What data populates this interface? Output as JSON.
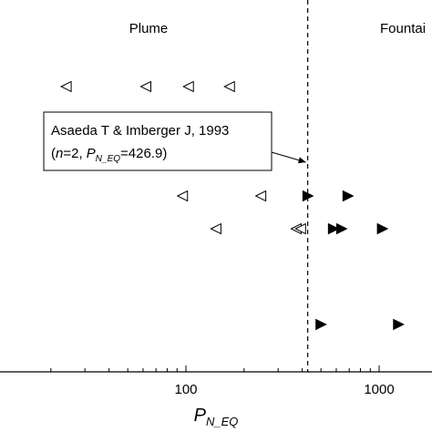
{
  "chart_data": {
    "type": "scatter",
    "x_scale": "log",
    "xlabel_main": "P",
    "xlabel_sub": "N_EQ",
    "xlim": [
      4.5,
      2000
    ],
    "x_ticks": [
      {
        "value": 10,
        "label": ""
      },
      {
        "value": 100,
        "label": "100"
      },
      {
        "value": 1000,
        "label": "1000"
      }
    ],
    "region_labels": [
      {
        "text": "Plume"
      },
      {
        "text": "Fountai"
      }
    ],
    "divider_x": 426.9,
    "series": [
      {
        "marker": "open-left-triangle",
        "points": [
          {
            "x": 24,
            "row": 1
          },
          {
            "x": 62,
            "row": 1
          },
          {
            "x": 103,
            "row": 1
          },
          {
            "x": 168,
            "row": 1
          },
          {
            "x": 96,
            "row": 2
          },
          {
            "x": 244,
            "row": 2
          },
          {
            "x": 143,
            "row": 3
          },
          {
            "x": 372,
            "row": 3
          },
          {
            "x": 392,
            "row": 3
          }
        ]
      },
      {
        "marker": "filled-right-triangle",
        "points": [
          {
            "x": 428,
            "row": 2
          },
          {
            "x": 690,
            "row": 2
          },
          {
            "x": 580,
            "row": 3
          },
          {
            "x": 640,
            "row": 3
          },
          {
            "x": 1040,
            "row": 3
          },
          {
            "x": 500,
            "row": 4
          },
          {
            "x": 1260,
            "row": 4
          }
        ]
      }
    ],
    "annotation": {
      "line1": "Asaeda T & Imberger J, 1993",
      "line2_open": "(",
      "n_italic": "n",
      "line2_mid": "=2, ",
      "p_italic": "P",
      "p_sub": "N_EQ",
      "line2_close": "=426.9)",
      "arrow_target_x": 426.9,
      "arrow_target_row": 1.55
    }
  }
}
